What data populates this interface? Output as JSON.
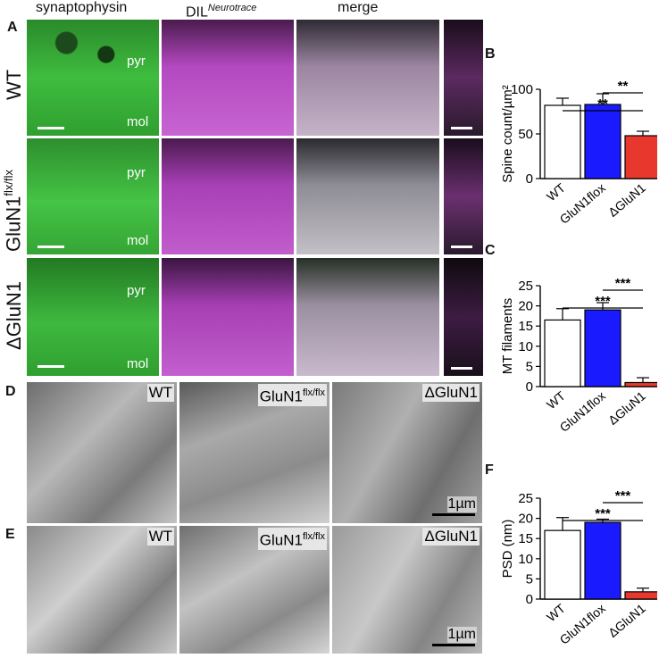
{
  "columns": {
    "syn": "synaptophysin",
    "dil": "DIL",
    "dil_sup": "Neurotrace",
    "merge": "merge"
  },
  "panels": {
    "A": "A",
    "B": "B",
    "C": "C",
    "D": "D",
    "E": "E",
    "F": "F"
  },
  "rows": {
    "wt": "WT",
    "gluflx": "GluN1",
    "gluflx_sup": "flx/flx",
    "dgl": "ΔGluN1"
  },
  "layers": {
    "pyr": "pyr",
    "mol": "mol"
  },
  "em": {
    "wt": "WT",
    "flx": "GluN1",
    "flx_sup": "flx/flx",
    "dgl": "ΔGluN1",
    "scale": "1µm"
  },
  "colors": {
    "wt": "#ffffff",
    "flox": "#1a1aff",
    "dgl": "#e8382e",
    "green": "#2fbf2f",
    "magenta": "#d055e0"
  },
  "chart_data": [
    {
      "type": "bar",
      "panel": "B",
      "categories": [
        "WT",
        "GluN1flox",
        "ΔGluN1"
      ],
      "values": [
        82,
        83,
        48
      ],
      "errors": [
        8,
        12,
        5
      ],
      "ylabel": "Spine count/µm²",
      "ylim": [
        0,
        100
      ],
      "yticks": [
        0,
        50,
        100
      ],
      "significance": [
        "**",
        "**"
      ]
    },
    {
      "type": "bar",
      "panel": "C",
      "categories": [
        "WT",
        "GluN1flox",
        "ΔGluN1"
      ],
      "values": [
        16.5,
        19,
        1
      ],
      "errors": [
        2.8,
        1.8,
        1.2
      ],
      "ylabel": "MT filaments",
      "ylim": [
        0,
        25
      ],
      "yticks": [
        0,
        5,
        10,
        15,
        20,
        25
      ],
      "significance": [
        "***",
        "***"
      ]
    },
    {
      "type": "bar",
      "panel": "F",
      "categories": [
        "WT",
        "GluN1flox",
        "ΔGluN1"
      ],
      "values": [
        17,
        19,
        1.8
      ],
      "errors": [
        3.2,
        0.8,
        0.9
      ],
      "ylabel": "PSD (nm)",
      "ylim": [
        0,
        25
      ],
      "yticks": [
        0,
        5,
        10,
        15,
        20,
        25
      ],
      "significance": [
        "***",
        "***"
      ]
    }
  ]
}
